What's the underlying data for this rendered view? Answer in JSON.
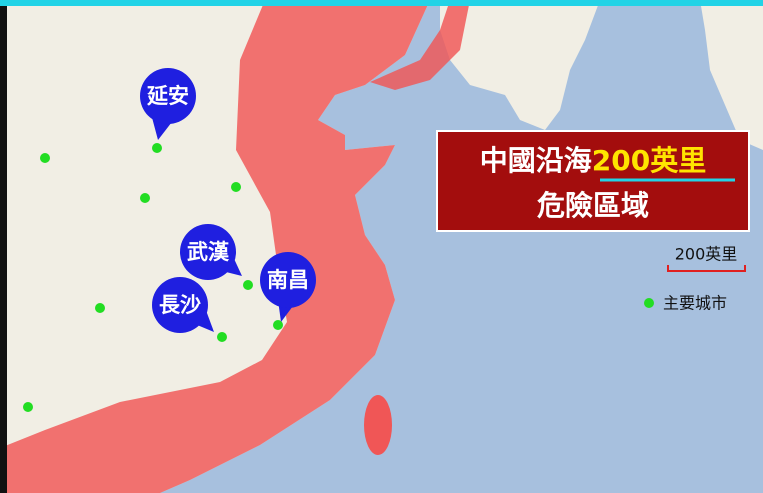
{
  "title": {
    "prefix": "中國沿海",
    "highlight": "200英里",
    "line2": "危險區域"
  },
  "cities": [
    "延安",
    "武漢",
    "長沙",
    "南昌"
  ],
  "scale_label": "200英里",
  "legend": "主要城市"
}
